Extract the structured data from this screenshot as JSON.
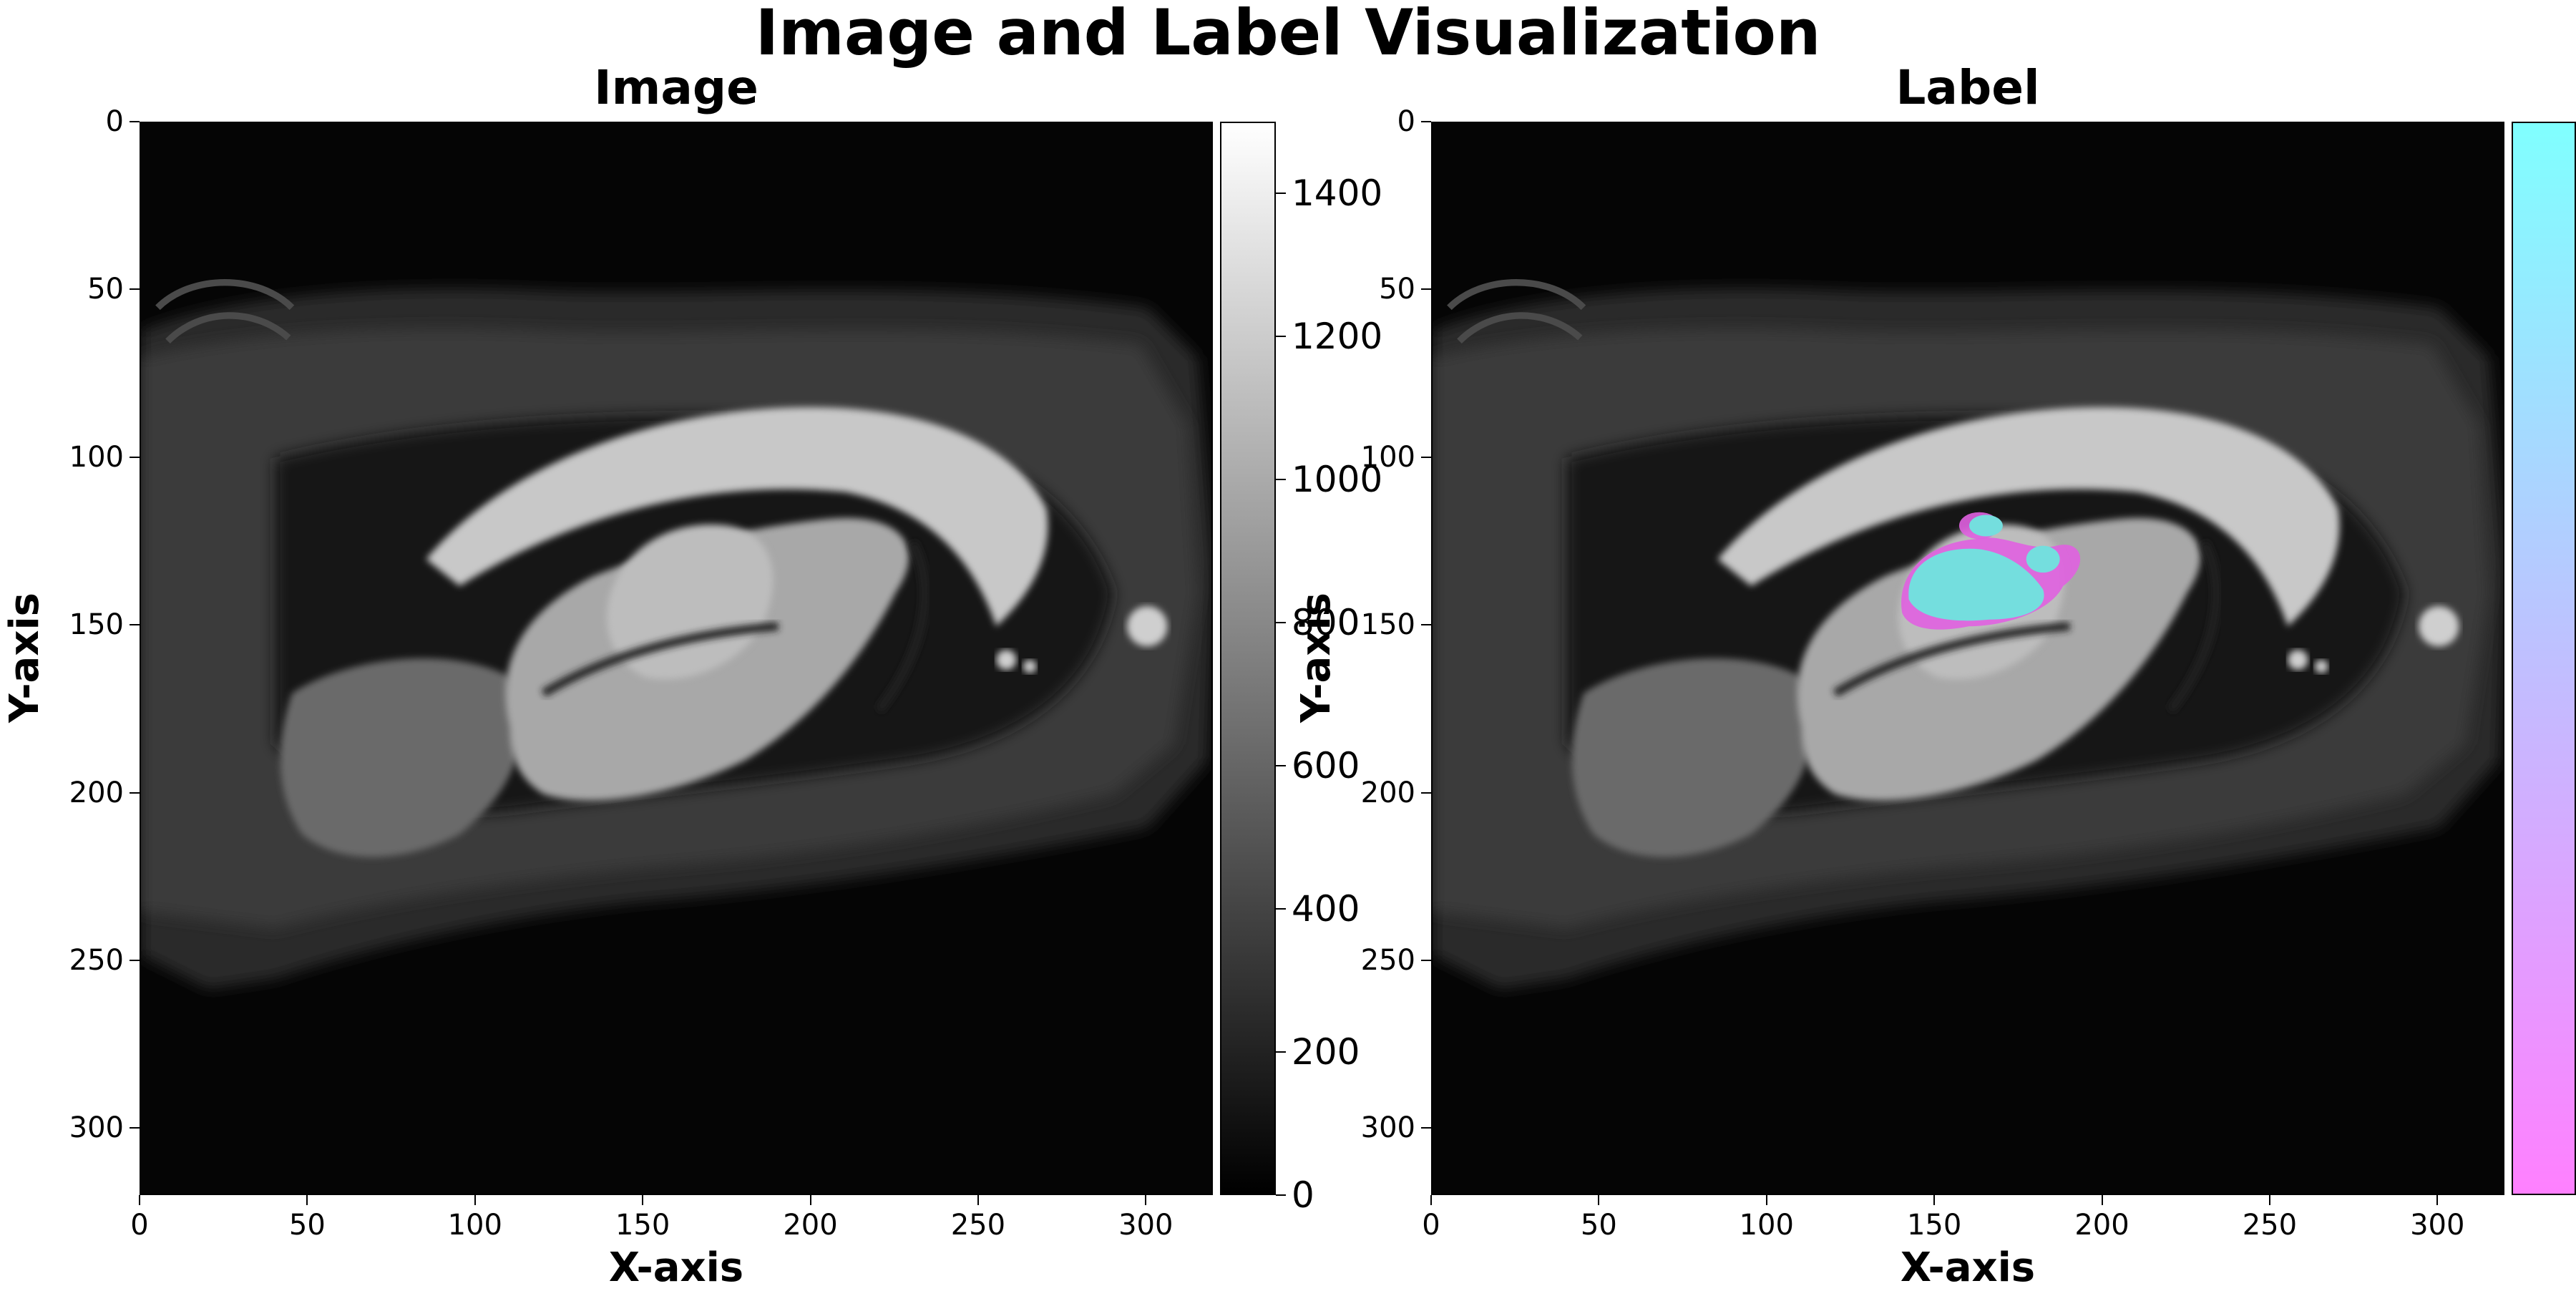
{
  "figure": {
    "title": "Image and Label Visualization"
  },
  "panels": [
    {
      "title": "Image",
      "xlabel": "X-axis",
      "ylabel": "Y-axis",
      "colormap": "gray",
      "colorbar_ticks": [
        "0",
        "200",
        "400",
        "600",
        "800",
        "1000",
        "1200",
        "1400"
      ],
      "overlay": false
    },
    {
      "title": "Label",
      "xlabel": "X-axis",
      "ylabel": "Y-axis",
      "colormap": "cool",
      "colorbar_ticks": [],
      "overlay": true,
      "overlay_colors": [
        "#80ffff",
        "#ff80ff"
      ]
    }
  ],
  "axes": {
    "x_ticks": [
      "0",
      "50",
      "100",
      "150",
      "200",
      "250",
      "300"
    ],
    "y_ticks": [
      "0",
      "50",
      "100",
      "150",
      "200",
      "250",
      "300"
    ],
    "x_range": [
      0,
      320
    ],
    "y_range": [
      0,
      320
    ]
  },
  "colors": {
    "background": "#ffffff",
    "image_background": "#050505",
    "label_cyan": "#80ffff",
    "label_magenta": "#ff80ff"
  }
}
